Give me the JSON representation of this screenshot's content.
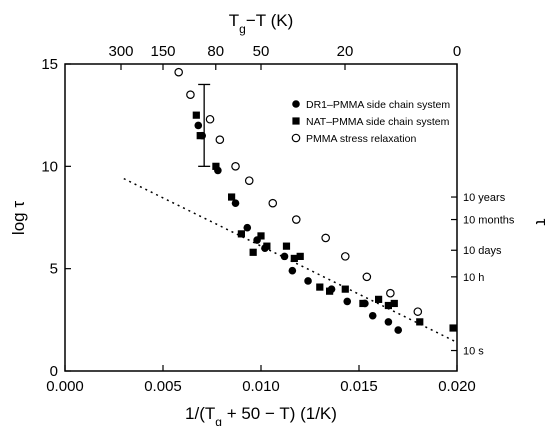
{
  "chart_data": {
    "type": "scatter",
    "xlabel": "1/(T_g + 50 − T) (1/K)",
    "ylabel": "log τ",
    "top_xlabel": "T_g−T (K)",
    "right_ylabel": "τ",
    "xlim": [
      0.0,
      0.02
    ],
    "ylim": [
      0,
      15
    ],
    "x_ticks": [
      "0.000",
      "0.005",
      "0.010",
      "0.015",
      "0.020"
    ],
    "y_ticks": [
      "0",
      "5",
      "10",
      "15"
    ],
    "top_ticks": [
      {
        "label": "300",
        "value": 300
      },
      {
        "label": "150",
        "value": 150
      },
      {
        "label": "80",
        "value": 80
      },
      {
        "label": "50",
        "value": 50
      },
      {
        "label": "20",
        "value": 20
      },
      {
        "label": "0",
        "value": 0
      }
    ],
    "right_ticks": [
      {
        "label": "10 years",
        "log_tau": 8.5
      },
      {
        "label": "10 months",
        "log_tau": 7.4
      },
      {
        "label": "10 days",
        "log_tau": 5.9
      },
      {
        "label": "10 h",
        "log_tau": 4.6
      },
      {
        "label": "10 s",
        "log_tau": 1.0
      }
    ],
    "legend_position": "top-right",
    "series": [
      {
        "name": "DR1–PMMA side chain system",
        "marker": "filled-circle",
        "points": [
          [
            0.0068,
            12.0
          ],
          [
            0.007,
            11.5
          ],
          [
            0.0078,
            9.8
          ],
          [
            0.0087,
            8.2
          ],
          [
            0.0093,
            7.0
          ],
          [
            0.0098,
            6.4
          ],
          [
            0.0102,
            6.0
          ],
          [
            0.0112,
            5.6
          ],
          [
            0.0116,
            4.9
          ],
          [
            0.0124,
            4.4
          ],
          [
            0.0136,
            4.0
          ],
          [
            0.0144,
            3.4
          ],
          [
            0.0153,
            3.3
          ],
          [
            0.0157,
            2.7
          ],
          [
            0.0165,
            2.4
          ],
          [
            0.017,
            2.0
          ]
        ]
      },
      {
        "name": "NAT–PMMA side chain system",
        "marker": "filled-square",
        "points": [
          [
            0.0067,
            12.5
          ],
          [
            0.0069,
            11.5
          ],
          [
            0.0077,
            10.0
          ],
          [
            0.0085,
            8.5
          ],
          [
            0.009,
            6.7
          ],
          [
            0.0096,
            5.8
          ],
          [
            0.01,
            6.6
          ],
          [
            0.0103,
            6.1
          ],
          [
            0.0113,
            6.1
          ],
          [
            0.0117,
            5.5
          ],
          [
            0.012,
            5.6
          ],
          [
            0.013,
            4.1
          ],
          [
            0.0135,
            3.9
          ],
          [
            0.0143,
            4.0
          ],
          [
            0.0152,
            3.3
          ],
          [
            0.016,
            3.5
          ],
          [
            0.0165,
            3.2
          ],
          [
            0.0168,
            3.3
          ],
          [
            0.0181,
            2.4
          ],
          [
            0.0198,
            2.1
          ]
        ]
      },
      {
        "name": "PMMA stress relaxation",
        "marker": "open-circle",
        "points": [
          [
            0.0058,
            14.6
          ],
          [
            0.0064,
            13.5
          ],
          [
            0.0074,
            12.3
          ],
          [
            0.0079,
            11.3
          ],
          [
            0.0087,
            10.0
          ],
          [
            0.0094,
            9.3
          ],
          [
            0.0106,
            8.2
          ],
          [
            0.0118,
            7.4
          ],
          [
            0.0133,
            6.5
          ],
          [
            0.0143,
            5.6
          ],
          [
            0.0154,
            4.6
          ],
          [
            0.0166,
            3.8
          ],
          [
            0.018,
            2.9
          ]
        ]
      }
    ],
    "trend_line": {
      "style": "dotted",
      "from": [
        0.003,
        9.4
      ],
      "to": [
        0.02,
        1.4
      ]
    },
    "error_bar": {
      "x": 0.0071,
      "y_low": 10.0,
      "y_high": 14.0
    }
  }
}
